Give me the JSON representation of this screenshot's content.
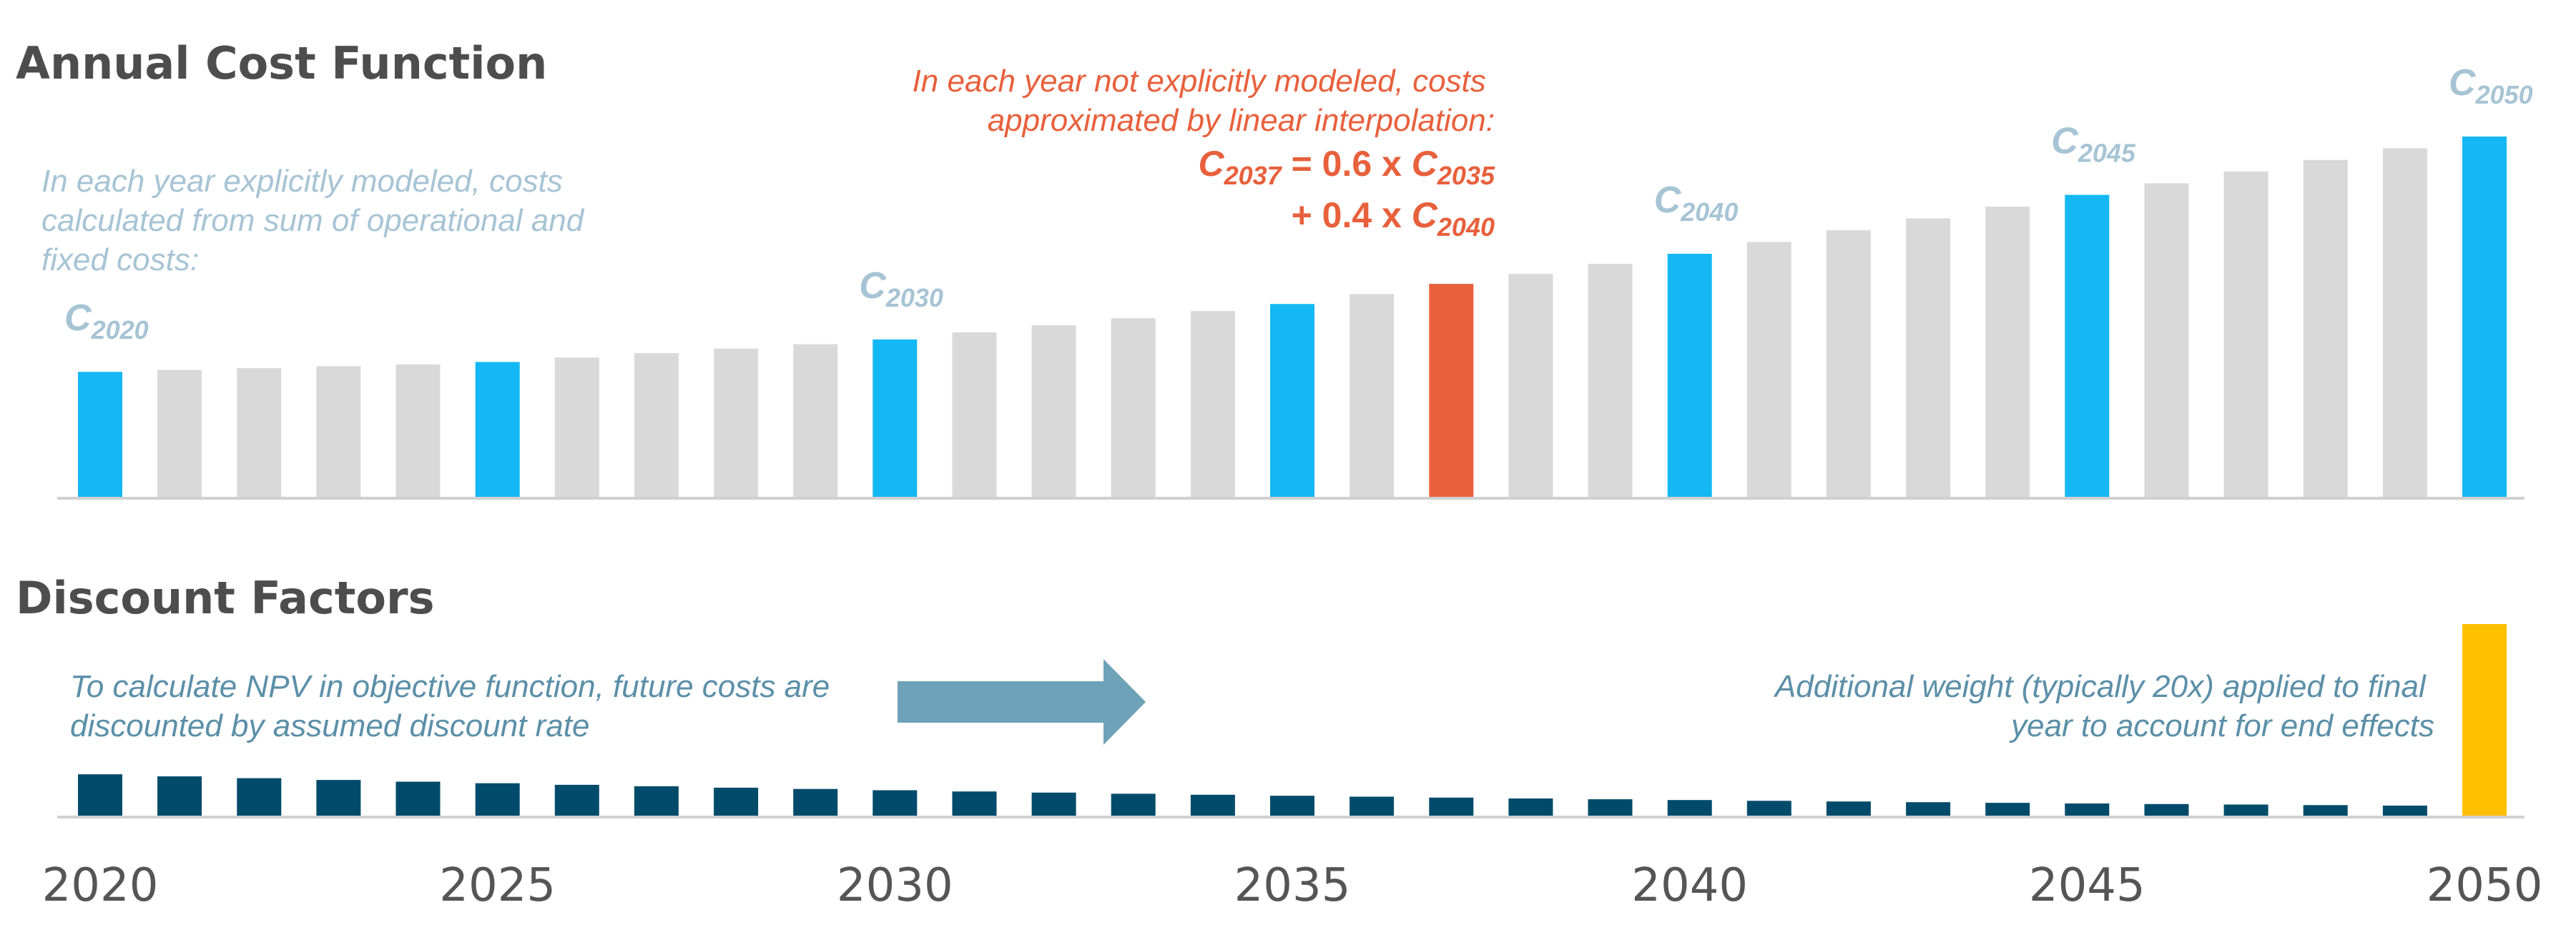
{
  "chart_data": [
    {
      "type": "bar",
      "title": "Annual Cost Function",
      "categories": [
        2020,
        2021,
        2022,
        2023,
        2024,
        2025,
        2026,
        2027,
        2028,
        2029,
        2030,
        2031,
        2032,
        2033,
        2034,
        2035,
        2036,
        2037,
        2038,
        2039,
        2040,
        2041,
        2042,
        2043,
        2044,
        2045,
        2046,
        2047,
        2048,
        2049,
        2050
      ],
      "values": [
        100,
        101.5,
        103,
        104.5,
        106,
        107.9,
        111.5,
        115,
        118.6,
        122.1,
        125.9,
        131.6,
        137.2,
        142.9,
        148.6,
        154.3,
        162.3,
        170.4,
        178.4,
        186.5,
        194.5,
        203.9,
        213.3,
        222.8,
        232.2,
        241.6,
        250.9,
        260.3,
        269.6,
        278.9,
        288.3
      ],
      "highlight_years_modeled": [
        2020,
        2025,
        2030,
        2035,
        2040,
        2045,
        2050
      ],
      "highlight_year_interpolated": 2037,
      "colors": {
        "modeled": "#14b8f5",
        "interpolated": "#e8603c",
        "other": "#d9d9d9"
      },
      "point_labels": [
        {
          "year": 2020,
          "base": "C",
          "sub": "2020"
        },
        {
          "year": 2030,
          "base": "C",
          "sub": "2030"
        },
        {
          "year": 2040,
          "base": "C",
          "sub": "2040"
        },
        {
          "year": 2045,
          "base": "C",
          "sub": "2045"
        },
        {
          "year": 2050,
          "base": "C",
          "sub": "2050"
        }
      ],
      "annotations": {
        "left": [
          "In each year explicitly modeled, costs",
          "calculated from sum of operational and",
          "fixed costs:"
        ],
        "interp": [
          "In each year not explicitly modeled, costs",
          "approximated by linear interpolation:"
        ],
        "eq1": {
          "base": "C",
          "sub": "2037",
          "mid": " = 0.6 x ",
          "base2": "C",
          "sub2": "2035"
        },
        "eq2": {
          "prefix": "+ 0.4 x ",
          "base": "C",
          "sub": "2040"
        }
      }
    },
    {
      "type": "bar",
      "title": "Discount Factors",
      "categories": [
        2020,
        2021,
        2022,
        2023,
        2024,
        2025,
        2026,
        2027,
        2028,
        2029,
        2030,
        2031,
        2032,
        2033,
        2034,
        2035,
        2036,
        2037,
        2038,
        2039,
        2040,
        2041,
        2042,
        2043,
        2044,
        2045,
        2046,
        2047,
        2048,
        2049,
        2050
      ],
      "values": [
        1.0,
        0.95,
        0.907,
        0.864,
        0.823,
        0.784,
        0.746,
        0.711,
        0.677,
        0.645,
        0.614,
        0.585,
        0.557,
        0.53,
        0.505,
        0.481,
        0.458,
        0.436,
        0.416,
        0.396,
        0.377,
        0.359,
        0.342,
        0.326,
        0.31,
        0.295,
        0.281,
        0.268,
        0.255,
        0.243,
        4.64
      ],
      "final_year_weight": "20x",
      "colors": {
        "regular": "#004b6b",
        "final": "#ffc000",
        "arrow": "#6ea2b8"
      },
      "annotations": {
        "left": [
          "To calculate NPV in objective function, future costs are",
          "discounted by assumed discount rate"
        ],
        "right": [
          "Additional weight (typically 20x) applied to final",
          "year to account for end effects"
        ]
      },
      "x_tick_labels": [
        "2020",
        "2025",
        "2030",
        "2035",
        "2040",
        "2045",
        "2050"
      ]
    }
  ]
}
